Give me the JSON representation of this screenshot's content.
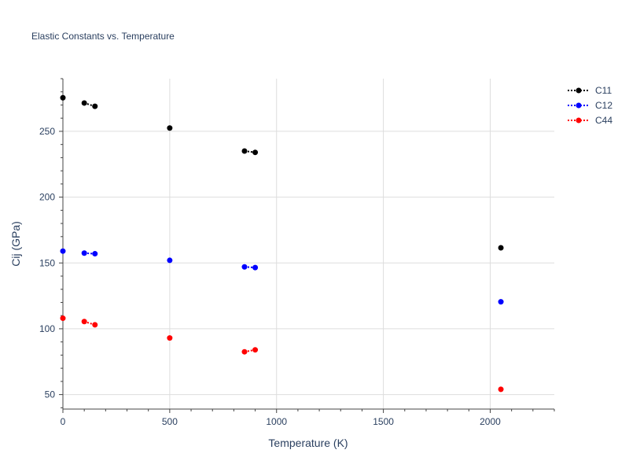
{
  "chart_data": {
    "type": "scatter",
    "title": "Elastic Constants vs. Temperature",
    "xlabel": "Temperature (K)",
    "ylabel": "Cij (GPa)",
    "xlim": [
      0,
      2300
    ],
    "ylim": [
      39,
      290
    ],
    "xticks": [
      0,
      500,
      1000,
      1500,
      2000
    ],
    "yticks": [
      50,
      100,
      150,
      200,
      250
    ],
    "grid": true,
    "legend_position": "top-right",
    "series": [
      {
        "name": "C11",
        "color": "#000000",
        "x": [
          0,
          100,
          150,
          500,
          850,
          900,
          2050
        ],
        "y": [
          275.5,
          271.5,
          269.0,
          252.5,
          235.0,
          234.0,
          161.5
        ]
      },
      {
        "name": "C12",
        "color": "#0000ff",
        "x": [
          0,
          100,
          150,
          500,
          850,
          900,
          2050
        ],
        "y": [
          159.0,
          157.5,
          157.0,
          152.0,
          147.0,
          146.5,
          120.5
        ]
      },
      {
        "name": "C44",
        "color": "#ff0000",
        "x": [
          0,
          100,
          150,
          500,
          850,
          900,
          2050
        ],
        "y": [
          108.0,
          105.5,
          103.0,
          93.0,
          82.5,
          84.0,
          54.0
        ]
      }
    ]
  }
}
